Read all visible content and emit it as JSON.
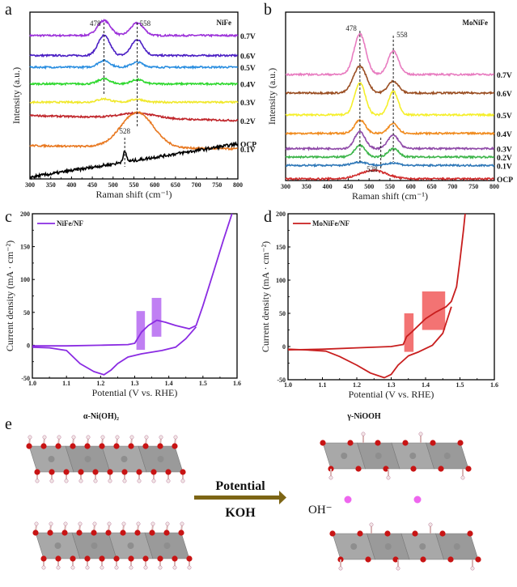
{
  "panels": {
    "a": "a",
    "b": "b",
    "c": "c",
    "d": "d",
    "e": "e"
  },
  "chart_data": [
    {
      "id": "a",
      "type": "line",
      "title": "NiFe",
      "xlabel": "Raman shift (cm⁻¹)",
      "ylabel": "Intensity (a.u.)",
      "xlim": [
        300,
        800
      ],
      "xticks": [
        "300",
        "350",
        "400",
        "450",
        "500",
        "550",
        "600",
        "650",
        "700",
        "750",
        "800"
      ],
      "peak_markers": [
        {
          "x": 478,
          "label": "478"
        },
        {
          "x": 558,
          "label": "558"
        },
        {
          "x": 528,
          "label": "528"
        }
      ],
      "series": [
        {
          "name": "0.7V",
          "color": "#9b30d9",
          "offset": 0.86,
          "peaks": [
            [
              478,
              0.09,
              22
            ],
            [
              558,
              0.075,
              22
            ]
          ],
          "slope": 0
        },
        {
          "name": "0.6V",
          "color": "#4b1fc4",
          "offset": 0.74,
          "peaks": [
            [
              478,
              0.12,
              20
            ],
            [
              558,
              0.095,
              20
            ]
          ],
          "slope": 0
        },
        {
          "name": "0.5V",
          "color": "#2a8ee0",
          "offset": 0.67,
          "peaks": [
            [
              478,
              0.04,
              20
            ],
            [
              558,
              0.03,
              20
            ]
          ],
          "slope": 0
        },
        {
          "name": "0.4V",
          "color": "#2fd82f",
          "offset": 0.57,
          "peaks": [
            [
              478,
              0.03,
              20
            ],
            [
              558,
              0.025,
              20
            ]
          ],
          "slope": 0
        },
        {
          "name": "0.3V",
          "color": "#f0e82a",
          "offset": 0.46,
          "peaks": [
            [
              478,
              0.02,
              22
            ],
            [
              558,
              0.018,
              22
            ]
          ],
          "slope": 0
        },
        {
          "name": "0.2V",
          "color": "#c0262b",
          "offset": 0.38,
          "peaks": [
            [
              558,
              0.03,
              60
            ]
          ],
          "slope": -0.03
        },
        {
          "name": "0.1V",
          "color": "#e87820",
          "offset": 0.2,
          "peaks": [
            [
              558,
              0.21,
              55
            ]
          ],
          "slope": -0.02
        },
        {
          "name": "OCP",
          "color": "#000000",
          "offset": 0.01,
          "peaks": [
            [
              528,
              0.06,
              6
            ]
          ],
          "slope": 0.2
        }
      ]
    },
    {
      "id": "b",
      "type": "line",
      "title": "MoNiFe",
      "xlabel": "Raman shift (cm⁻¹)",
      "ylabel": "Intensity (a.u.)",
      "xlim": [
        300,
        800
      ],
      "xticks": [
        "300",
        "350",
        "400",
        "450",
        "500",
        "550",
        "600",
        "650",
        "700",
        "750",
        "800"
      ],
      "peak_markers": [
        {
          "x": 478,
          "label": "478"
        },
        {
          "x": 558,
          "label": "558"
        },
        {
          "x": 528,
          "label": "528"
        }
      ],
      "series": [
        {
          "name": "0.7V",
          "color": "#e87cc0",
          "offset": 0.63,
          "peaks": [
            [
              478,
              0.24,
              20
            ],
            [
              558,
              0.14,
              18
            ]
          ],
          "slope": 0
        },
        {
          "name": "0.6V",
          "color": "#9a4e22",
          "offset": 0.52,
          "peaks": [
            [
              478,
              0.16,
              22
            ],
            [
              558,
              0.07,
              18
            ]
          ],
          "slope": 0
        },
        {
          "name": "0.5V",
          "color": "#f5ef2a",
          "offset": 0.39,
          "peaks": [
            [
              478,
              0.19,
              18
            ],
            [
              558,
              0.14,
              16
            ]
          ],
          "slope": 0
        },
        {
          "name": "0.4V",
          "color": "#f08a1c",
          "offset": 0.28,
          "peaks": [
            [
              478,
              0.08,
              18
            ],
            [
              558,
              0.06,
              16
            ]
          ],
          "slope": 0
        },
        {
          "name": "0.3V",
          "color": "#8f4aa8",
          "offset": 0.19,
          "peaks": [
            [
              478,
              0.1,
              18
            ],
            [
              558,
              0.08,
              18
            ]
          ],
          "slope": 0
        },
        {
          "name": "0.2V",
          "color": "#3db54a",
          "offset": 0.14,
          "peaks": [
            [
              478,
              0.07,
              18
            ],
            [
              558,
              0.05,
              18
            ]
          ],
          "slope": 0
        },
        {
          "name": "0.1V",
          "color": "#2f78b8",
          "offset": 0.09,
          "peaks": [
            [
              478,
              0.02,
              25
            ],
            [
              558,
              0.015,
              20
            ]
          ],
          "slope": 0
        },
        {
          "name": "OCP",
          "color": "#d02a2a",
          "offset": 0.01,
          "peaks": [
            [
              510,
              0.05,
              45
            ]
          ],
          "slope": 0
        }
      ]
    },
    {
      "id": "c",
      "type": "line",
      "legend": "NiFe/NF",
      "legend_position": "top-left",
      "color": "#8a2be2",
      "xlabel": "Potential (V vs. RHE)",
      "ylabel": "Current density (mA · cm⁻²)",
      "xlim": [
        1.0,
        1.6
      ],
      "ylim": [
        -50,
        200
      ],
      "xticks": [
        "1.0",
        "1.1",
        "1.2",
        "1.3",
        "1.4",
        "1.5",
        "1.6"
      ],
      "yticks": [
        "-50",
        "0",
        "50",
        "100",
        "150",
        "200"
      ],
      "forward": [
        [
          1.0,
          -1
        ],
        [
          1.1,
          -1
        ],
        [
          1.2,
          0
        ],
        [
          1.28,
          1
        ],
        [
          1.3,
          3
        ],
        [
          1.32,
          20
        ],
        [
          1.34,
          30
        ],
        [
          1.365,
          38
        ],
        [
          1.39,
          35
        ],
        [
          1.42,
          30
        ],
        [
          1.46,
          25
        ],
        [
          1.48,
          30
        ],
        [
          1.5,
          60
        ],
        [
          1.53,
          110
        ],
        [
          1.56,
          160
        ],
        [
          1.585,
          200
        ]
      ],
      "reverse": [
        [
          1.48,
          28
        ],
        [
          1.45,
          10
        ],
        [
          1.42,
          -3
        ],
        [
          1.38,
          -8
        ],
        [
          1.32,
          -13
        ],
        [
          1.28,
          -18
        ],
        [
          1.25,
          -28
        ],
        [
          1.23,
          -38
        ],
        [
          1.21,
          -45
        ],
        [
          1.18,
          -40
        ],
        [
          1.14,
          -28
        ],
        [
          1.1,
          -8
        ],
        [
          1.05,
          -4
        ],
        [
          1.0,
          -3
        ]
      ],
      "highlight_boxes": [
        {
          "x": [
            1.305,
            1.33
          ],
          "y": [
            -7,
            52
          ]
        },
        {
          "x": [
            1.35,
            1.378
          ],
          "y": [
            13,
            72
          ]
        }
      ],
      "highlight_color": "#b05ff0"
    },
    {
      "id": "d",
      "type": "line",
      "legend": "MoNiFe/NF",
      "legend_position": "top-left",
      "color": "#c81e1e",
      "xlabel": "Potential (V vs. RHE)",
      "ylabel": "Current density (mA · cm⁻²)",
      "xlim": [
        1.0,
        1.6
      ],
      "ylim": [
        -50,
        200
      ],
      "xticks": [
        "1.0",
        "1.1",
        "1.2",
        "1.3",
        "1.4",
        "1.5",
        "1.6"
      ],
      "yticks": [
        "-50",
        "0",
        "50",
        "100",
        "150",
        "200"
      ],
      "forward": [
        [
          1.0,
          -5
        ],
        [
          1.1,
          -4
        ],
        [
          1.2,
          -2
        ],
        [
          1.3,
          0
        ],
        [
          1.335,
          3
        ],
        [
          1.345,
          15
        ],
        [
          1.36,
          22
        ],
        [
          1.38,
          32
        ],
        [
          1.4,
          42
        ],
        [
          1.43,
          52
        ],
        [
          1.46,
          60
        ],
        [
          1.475,
          68
        ],
        [
          1.49,
          90
        ],
        [
          1.5,
          130
        ],
        [
          1.51,
          175
        ],
        [
          1.515,
          200
        ]
      ],
      "reverse": [
        [
          1.475,
          60
        ],
        [
          1.45,
          20
        ],
        [
          1.42,
          2
        ],
        [
          1.38,
          -8
        ],
        [
          1.35,
          -14
        ],
        [
          1.32,
          -28
        ],
        [
          1.3,
          -42
        ],
        [
          1.28,
          -47
        ],
        [
          1.24,
          -40
        ],
        [
          1.2,
          -28
        ],
        [
          1.15,
          -15
        ],
        [
          1.11,
          -7
        ],
        [
          1.05,
          -5
        ],
        [
          1.0,
          -4
        ]
      ],
      "highlight_boxes": [
        {
          "x": [
            1.338,
            1.365
          ],
          "y": [
            -8,
            50
          ]
        },
        {
          "x": [
            1.39,
            1.457
          ],
          "y": [
            25,
            83
          ]
        }
      ],
      "highlight_color": "#f05050"
    }
  ],
  "schematic": {
    "left_title": "α-Ni(OH)₂",
    "right_title": "γ-NiOOH",
    "arrow_top": "Potential",
    "arrow_bottom": "KOH",
    "ion_label": "OH⁻"
  }
}
